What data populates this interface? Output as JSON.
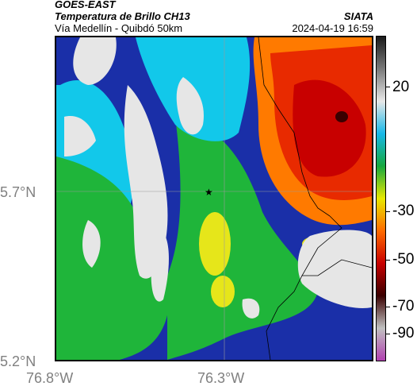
{
  "header": {
    "satellite": "GOES-EAST",
    "product": "Temperatura de Brillo CH13",
    "institution": "SIATA",
    "region": "Vía Medellín - Quibdó 50km",
    "datetime": "2024-04-19 16:59"
  },
  "axes": {
    "lon_ticks": [
      "76.8°W",
      "76.3°W"
    ],
    "lat_ticks": [
      "5.7°N",
      "5.2°N"
    ]
  },
  "colorbar": {
    "ticks": [
      "20",
      "-30",
      "-50",
      "-70",
      "-90"
    ],
    "colors": [
      "#1a1a1a",
      "#7a7a7a",
      "#e8e8e8",
      "#17b8e8",
      "#16a83e",
      "#e8e800",
      "#ff6a00",
      "#c80000",
      "#3a0000",
      "#c0c0c0",
      "#b040b0"
    ]
  },
  "map": {
    "marker": "star",
    "colors": {
      "cloud_white": "#e6e6e6",
      "cloud_blue": "#1a2fa8",
      "cyan": "#12c8ea",
      "green": "#1fb53a",
      "yellow": "#e6e61a",
      "red_hot": "#e82a00",
      "orange": "#ff7a00"
    }
  }
}
